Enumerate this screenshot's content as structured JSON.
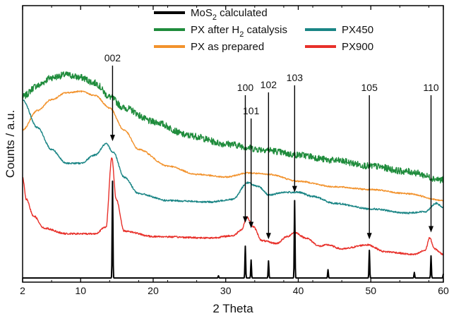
{
  "chart_data": {
    "type": "line",
    "xlabel": "2 Theta",
    "ylabel": "Counts / a.u.",
    "xlim": [
      2,
      60
    ],
    "ylim": [
      0,
      100
    ],
    "x_ticks": [
      "2",
      "10",
      "20",
      "30",
      "40",
      "50",
      "60"
    ],
    "y_ticks_shown": false,
    "grid": false,
    "legend": {
      "placement": "top",
      "entries": [
        {
          "series": "mos2",
          "label_main": "MoS",
          "label_sub": "2",
          "label_rest": " calculated"
        },
        {
          "series": "h2",
          "label_main": "PX after H",
          "label_sub": "2",
          "label_rest": " catalysis"
        },
        {
          "series": "px450",
          "label_main": "PX450",
          "label_sub": "",
          "label_rest": ""
        },
        {
          "series": "prepared",
          "label_main": "PX as prepared",
          "label_sub": "",
          "label_rest": ""
        },
        {
          "series": "px900",
          "label_main": "PX900",
          "label_sub": "",
          "label_rest": ""
        }
      ]
    },
    "series": [
      {
        "id": "h2",
        "name": "PX after H2 catalysis",
        "color": "#1f8c3c",
        "noise": 1.2,
        "points": [
          [
            2,
            67
          ],
          [
            4,
            71
          ],
          [
            6,
            74
          ],
          [
            8,
            75
          ],
          [
            10,
            74
          ],
          [
            12,
            72
          ],
          [
            14,
            67
          ],
          [
            16,
            63
          ],
          [
            20,
            58
          ],
          [
            25,
            53
          ],
          [
            30,
            50
          ],
          [
            35,
            48
          ],
          [
            40,
            46
          ],
          [
            45,
            44
          ],
          [
            50,
            42
          ],
          [
            55,
            40
          ],
          [
            60,
            37
          ]
        ]
      },
      {
        "id": "prepared",
        "name": "PX as prepared",
        "color": "#f2922c",
        "noise": 0.25,
        "points": [
          [
            2,
            55
          ],
          [
            4,
            62
          ],
          [
            6,
            66
          ],
          [
            8,
            68.5
          ],
          [
            10,
            69
          ],
          [
            12,
            67.5
          ],
          [
            14,
            63
          ],
          [
            16,
            55
          ],
          [
            18,
            48
          ],
          [
            22,
            42
          ],
          [
            26,
            39
          ],
          [
            30,
            38
          ],
          [
            33,
            39.5
          ],
          [
            36,
            39
          ],
          [
            40,
            36.5
          ],
          [
            45,
            34.5
          ],
          [
            50,
            33.5
          ],
          [
            55,
            32
          ],
          [
            60,
            29.5
          ]
        ]
      },
      {
        "id": "px450",
        "name": "PX450",
        "color": "#1a8585",
        "noise": 0.3,
        "points": [
          [
            2,
            66
          ],
          [
            4,
            56
          ],
          [
            6,
            48
          ],
          [
            8,
            43
          ],
          [
            10,
            43
          ],
          [
            12,
            46
          ],
          [
            13.5,
            50
          ],
          [
            14.5,
            47
          ],
          [
            16,
            38
          ],
          [
            18,
            32
          ],
          [
            22,
            29.5
          ],
          [
            28,
            29
          ],
          [
            31,
            30
          ],
          [
            33,
            36
          ],
          [
            34.5,
            34.5
          ],
          [
            36,
            31.5
          ],
          [
            38,
            32.5
          ],
          [
            40,
            32.5
          ],
          [
            42,
            31
          ],
          [
            45,
            28.5
          ],
          [
            50,
            26.5
          ],
          [
            55,
            25
          ],
          [
            57.5,
            25.5
          ],
          [
            59,
            28.5
          ],
          [
            60,
            27
          ]
        ]
      },
      {
        "id": "px900",
        "name": "PX900",
        "color": "#e8302a",
        "noise": 0.3,
        "points": [
          [
            2,
            38
          ],
          [
            2.5,
            30
          ],
          [
            3.5,
            24
          ],
          [
            5,
            19.5
          ],
          [
            8,
            17.5
          ],
          [
            12,
            17.5
          ],
          [
            13.5,
            20
          ],
          [
            14.3,
            45
          ],
          [
            14.9,
            30
          ],
          [
            16,
            18.5
          ],
          [
            20,
            16.5
          ],
          [
            28,
            16
          ],
          [
            31,
            16.8
          ],
          [
            32.2,
            19
          ],
          [
            32.9,
            23.5
          ],
          [
            33.8,
            20
          ],
          [
            35,
            15
          ],
          [
            37,
            14
          ],
          [
            38.5,
            16.5
          ],
          [
            39.5,
            18
          ],
          [
            41,
            16
          ],
          [
            43,
            13
          ],
          [
            44,
            13.5
          ],
          [
            46,
            12
          ],
          [
            49.5,
            13.5
          ],
          [
            52,
            11
          ],
          [
            56,
            10
          ],
          [
            57.5,
            11.5
          ],
          [
            58.1,
            16
          ],
          [
            58.8,
            12
          ],
          [
            60,
            10
          ]
        ]
      },
      {
        "id": "mos2",
        "name": "MoS2 calculated",
        "color": "#000000",
        "baseline": 1.5,
        "peaks": [
          [
            14.4,
            35
          ],
          [
            29,
            0.8
          ],
          [
            32.7,
            11.5
          ],
          [
            33.5,
            6.5
          ],
          [
            35.9,
            6.2
          ],
          [
            39.5,
            28
          ],
          [
            44.1,
            3
          ],
          [
            49.8,
            10
          ],
          [
            56,
            2
          ],
          [
            58.3,
            8
          ],
          [
            60,
            1.5
          ]
        ]
      }
    ],
    "peak_labels": [
      {
        "text": "002",
        "x": 14.4,
        "arrow_tip": 51
      },
      {
        "text": "100",
        "x": 32.7,
        "arrow_tip": 21.5
      },
      {
        "text": "101",
        "x": 33.5,
        "arrow_tip": 19.5
      },
      {
        "text": "102",
        "x": 35.9,
        "arrow_tip": 15.5
      },
      {
        "text": "103",
        "x": 39.5,
        "arrow_tip": 32.5
      },
      {
        "text": "105",
        "x": 49.8,
        "arrow_tip": 15.5
      },
      {
        "text": "110",
        "x": 58.3,
        "arrow_tip": 18
      }
    ]
  }
}
